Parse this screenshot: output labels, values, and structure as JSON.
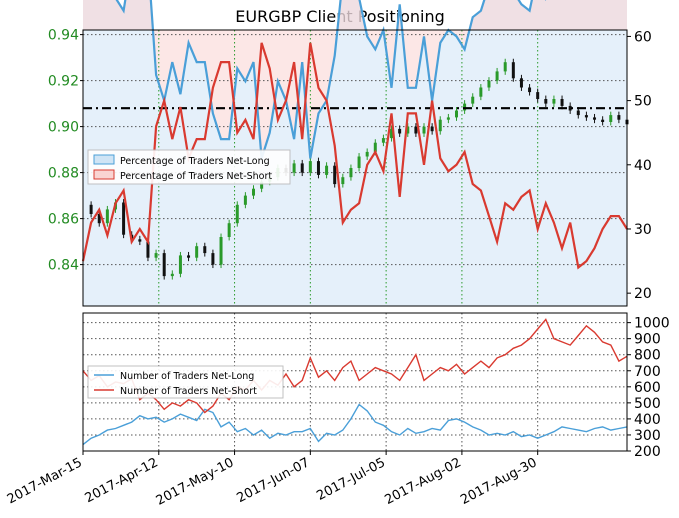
{
  "chart_data": {
    "type": "line",
    "title": "EURGBP Client Positioning",
    "colors": {
      "price_axis": "#228B22",
      "long": "#4a9fd8",
      "short": "#d93a30",
      "long_fill": "#cfe4f5",
      "short_fill": "#f9d4d2",
      "candle_up": "#2a9a2a",
      "candle_down": "#111111",
      "ref_line": "#000000"
    },
    "x_ticks": [
      "2017-Mar-15",
      "2017-Apr-12",
      "2017-May-10",
      "2017-Jun-07",
      "2017-Jul-05",
      "2017-Aug-02",
      "2017-Aug-30"
    ],
    "top_panel": {
      "price_axis": {
        "ticks": [
          "0.84",
          "0.86",
          "0.88",
          "0.90",
          "0.92",
          "0.94"
        ],
        "ylim": [
          0.822,
          0.942
        ]
      },
      "sentiment_axis": {
        "ticks": [
          "20",
          "30",
          "40",
          "50",
          "60"
        ],
        "ylim": [
          18,
          61
        ]
      },
      "legend": {
        "placement": "center-left",
        "items": [
          "Percentage of Traders Net-Long",
          "Percentage of Traders Net-Short"
        ]
      },
      "reference_line": 0.908,
      "series": [
        {
          "name": "Percentage of Traders Net-Long",
          "axis": "sentiment",
          "x": [
            0,
            3,
            6,
            9,
            12,
            15,
            18,
            21,
            24,
            27,
            30,
            33,
            36,
            39,
            42,
            45,
            48,
            51,
            54,
            57,
            60,
            63,
            66,
            69,
            72,
            75,
            78,
            81,
            84,
            87,
            90,
            93,
            96,
            99,
            102,
            105,
            108,
            111,
            114,
            117,
            120,
            123,
            126,
            129,
            132,
            135,
            138,
            141,
            144,
            147,
            150,
            153,
            156,
            159,
            162,
            165,
            168,
            171,
            174,
            177,
            180,
            183,
            186,
            189,
            192,
            195,
            198,
            201
          ],
          "values": [
            75,
            69,
            67,
            71,
            66,
            64,
            72,
            70,
            72,
            54,
            50,
            56,
            51,
            59,
            56,
            56,
            48,
            44,
            44,
            55,
            53,
            56,
            41,
            45,
            53,
            50,
            44,
            56,
            41,
            48,
            50,
            57,
            69,
            67,
            66,
            60,
            58,
            61,
            52,
            65,
            52,
            52,
            60,
            50,
            59,
            61,
            60,
            58,
            63,
            64,
            68,
            72,
            66,
            67,
            65,
            64,
            70,
            66,
            69,
            73,
            69,
            76,
            75,
            73,
            70,
            68,
            68,
            70
          ]
        },
        {
          "name": "Percentage of Traders Net-Short",
          "axis": "sentiment",
          "x": [
            0,
            3,
            6,
            9,
            12,
            15,
            18,
            21,
            24,
            27,
            30,
            33,
            36,
            39,
            42,
            45,
            48,
            51,
            54,
            57,
            60,
            63,
            66,
            69,
            72,
            75,
            78,
            81,
            84,
            87,
            90,
            93,
            96,
            99,
            102,
            105,
            108,
            111,
            114,
            117,
            120,
            123,
            126,
            129,
            132,
            135,
            138,
            141,
            144,
            147,
            150,
            153,
            156,
            159,
            162,
            165,
            168,
            171,
            174,
            177,
            180,
            183,
            186,
            189,
            192,
            195,
            198,
            201
          ],
          "values": [
            25,
            31,
            33,
            29,
            34,
            36,
            28,
            30,
            28,
            46,
            50,
            44,
            49,
            41,
            44,
            44,
            52,
            56,
            56,
            45,
            47,
            44,
            59,
            55,
            47,
            50,
            56,
            44,
            59,
            52,
            50,
            43,
            31,
            33,
            34,
            40,
            42,
            39,
            48,
            35,
            48,
            48,
            40,
            50,
            41,
            39,
            40,
            42,
            37,
            36,
            32,
            28,
            34,
            33,
            35,
            36,
            30,
            34,
            31,
            27,
            31,
            24,
            25,
            27,
            30,
            32,
            32,
            30
          ]
        },
        {
          "name": "EURGBP",
          "axis": "price",
          "x": [
            0,
            3,
            6,
            9,
            12,
            15,
            18,
            21,
            24,
            27,
            30,
            33,
            36,
            39,
            42,
            45,
            48,
            51,
            54,
            57,
            60,
            63,
            66,
            69,
            72,
            75,
            78,
            81,
            84,
            87,
            90,
            93,
            96,
            99,
            102,
            105,
            108,
            111,
            114,
            117,
            120,
            123,
            126,
            129,
            132,
            135,
            138,
            141,
            144,
            147,
            150,
            153,
            156,
            159,
            162,
            165,
            168,
            171,
            174,
            177,
            180,
            183,
            186,
            189,
            192,
            195,
            198,
            201
          ],
          "values": [
            0.866,
            0.862,
            0.858,
            0.864,
            0.867,
            0.853,
            0.851,
            0.85,
            0.843,
            0.845,
            0.835,
            0.836,
            0.844,
            0.843,
            0.848,
            0.845,
            0.84,
            0.852,
            0.858,
            0.866,
            0.87,
            0.873,
            0.876,
            0.878,
            0.882,
            0.88,
            0.884,
            0.88,
            0.885,
            0.879,
            0.883,
            0.875,
            0.878,
            0.882,
            0.887,
            0.889,
            0.893,
            0.895,
            0.899,
            0.897,
            0.9,
            0.897,
            0.9,
            0.898,
            0.903,
            0.904,
            0.907,
            0.91,
            0.913,
            0.917,
            0.92,
            0.924,
            0.928,
            0.921,
            0.917,
            0.915,
            0.912,
            0.91,
            0.912,
            0.909,
            0.907,
            0.905,
            0.904,
            0.903,
            0.902,
            0.905,
            0.903,
            0.901
          ]
        }
      ]
    },
    "bottom_panel": {
      "axis": {
        "ticks": [
          "200",
          "300",
          "400",
          "500",
          "600",
          "700",
          "800",
          "900",
          "1000"
        ],
        "ylim": [
          200,
          1060
        ]
      },
      "legend": {
        "placement": "center-left",
        "items": [
          "Number of Traders Net-Long",
          "Number of Traders Net-Short"
        ]
      },
      "series": [
        {
          "name": "Number of Traders Net-Long",
          "x": [
            0,
            3,
            6,
            9,
            12,
            15,
            18,
            21,
            24,
            27,
            30,
            33,
            36,
            39,
            42,
            45,
            48,
            51,
            54,
            57,
            60,
            63,
            66,
            69,
            72,
            75,
            78,
            81,
            84,
            87,
            90,
            93,
            96,
            99,
            102,
            105,
            108,
            111,
            114,
            117,
            120,
            123,
            126,
            129,
            132,
            135,
            138,
            141,
            144,
            147,
            150,
            153,
            156,
            159,
            162,
            165,
            168,
            171,
            174,
            177,
            180,
            183,
            186,
            189,
            192,
            195,
            198,
            201
          ],
          "values": [
            240,
            280,
            300,
            330,
            340,
            360,
            380,
            420,
            400,
            410,
            380,
            400,
            430,
            410,
            390,
            460,
            440,
            350,
            380,
            320,
            340,
            300,
            330,
            280,
            310,
            300,
            320,
            320,
            340,
            260,
            310,
            300,
            330,
            400,
            490,
            450,
            380,
            360,
            320,
            300,
            340,
            310,
            320,
            340,
            330,
            390,
            400,
            380,
            350,
            330,
            300,
            310,
            300,
            320,
            290,
            300,
            280,
            300,
            320,
            350,
            340,
            330,
            320,
            340,
            350,
            330,
            340,
            350
          ]
        },
        {
          "name": "Number of Traders Net-Short",
          "x": [
            0,
            3,
            6,
            9,
            12,
            15,
            18,
            21,
            24,
            27,
            30,
            33,
            36,
            39,
            42,
            45,
            48,
            51,
            54,
            57,
            60,
            63,
            66,
            69,
            72,
            75,
            78,
            81,
            84,
            87,
            90,
            93,
            96,
            99,
            102,
            105,
            108,
            111,
            114,
            117,
            120,
            123,
            126,
            129,
            132,
            135,
            138,
            141,
            144,
            147,
            150,
            153,
            156,
            159,
            162,
            165,
            168,
            171,
            174,
            177,
            180,
            183,
            186,
            189,
            192,
            195,
            198,
            201
          ],
          "values": [
            700,
            640,
            670,
            600,
            630,
            620,
            650,
            520,
            560,
            520,
            460,
            500,
            480,
            520,
            500,
            440,
            480,
            560,
            520,
            600,
            580,
            640,
            580,
            640,
            610,
            680,
            600,
            640,
            780,
            660,
            700,
            640,
            720,
            760,
            640,
            680,
            720,
            700,
            680,
            640,
            720,
            800,
            640,
            680,
            720,
            700,
            740,
            680,
            720,
            760,
            720,
            780,
            800,
            840,
            860,
            900,
            960,
            1020,
            900,
            880,
            860,
            920,
            980,
            940,
            880,
            860,
            760,
            790
          ]
        }
      ]
    }
  }
}
